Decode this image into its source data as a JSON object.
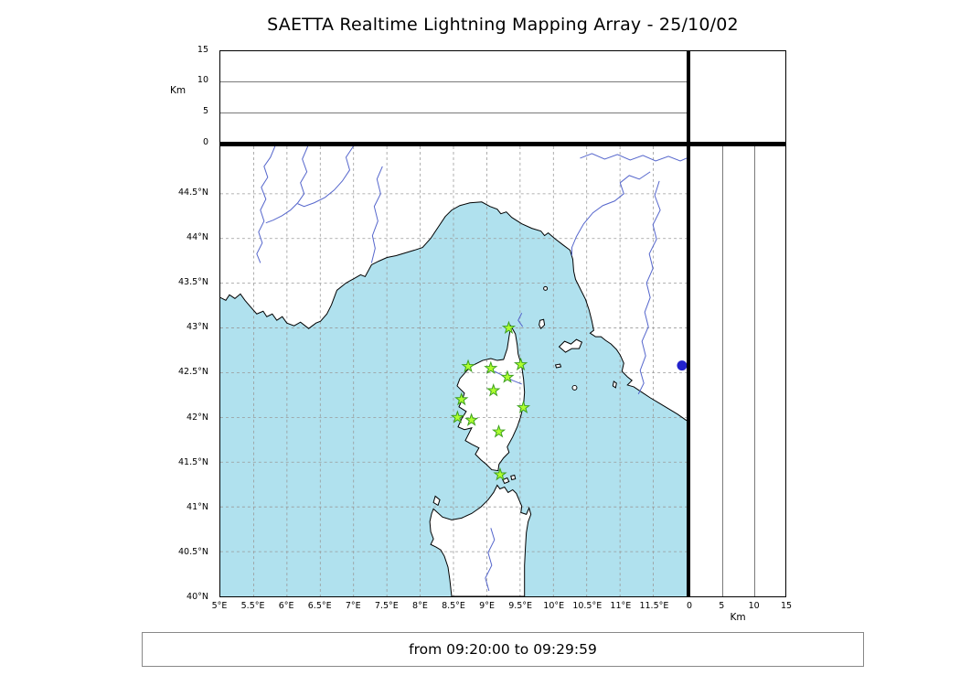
{
  "title": "SAETTA Realtime Lightning Mapping Array - 25/10/02",
  "time_caption": "from 09:20:00 to 09:29:59",
  "colors": {
    "sea": "#b0e1ee",
    "land": "#ffffff",
    "coast": "#000000",
    "river": "#5566cc",
    "grid": "#999999",
    "station_fill": "#adff2f",
    "station_edge": "#3da01e",
    "extra_dot": "#2222cc"
  },
  "altitude_panel": {
    "axis_label": "Km",
    "ticks": [
      "0",
      "5",
      "10",
      "15"
    ],
    "max_km": 15
  },
  "right_panel": {
    "axis_label": "Km",
    "ticks": [
      "0",
      "5",
      "10",
      "15"
    ],
    "max_km": 15
  },
  "map": {
    "lon_min": 5,
    "lon_max": 12,
    "lat_min": 40,
    "lat_max": 45.03,
    "lon_tick_labels": [
      "5°E",
      "5.5°E",
      "6°E",
      "6.5°E",
      "7°E",
      "7.5°E",
      "8°E",
      "8.5°E",
      "9°E",
      "9.5°E",
      "10°E",
      "10.5°E",
      "11°E",
      "11.5°E"
    ],
    "lat_tick_labels": [
      "40°N",
      "40.5°N",
      "41°N",
      "41.5°N",
      "42°N",
      "42.5°N",
      "43°N",
      "43.5°N",
      "44°N",
      "44.5°N"
    ]
  },
  "stations": [
    {
      "lon": 9.33,
      "lat": 43.0
    },
    {
      "lon": 8.72,
      "lat": 42.57
    },
    {
      "lon": 9.06,
      "lat": 42.55
    },
    {
      "lon": 9.51,
      "lat": 42.59
    },
    {
      "lon": 9.31,
      "lat": 42.45
    },
    {
      "lon": 9.1,
      "lat": 42.3
    },
    {
      "lon": 8.62,
      "lat": 42.2
    },
    {
      "lon": 9.55,
      "lat": 42.11
    },
    {
      "lon": 8.56,
      "lat": 42.0
    },
    {
      "lon": 8.77,
      "lat": 41.97
    },
    {
      "lon": 9.18,
      "lat": 41.84
    },
    {
      "lon": 9.2,
      "lat": 41.36
    }
  ],
  "extra_station": {
    "lon": 11.93,
    "lat": 42.58
  }
}
